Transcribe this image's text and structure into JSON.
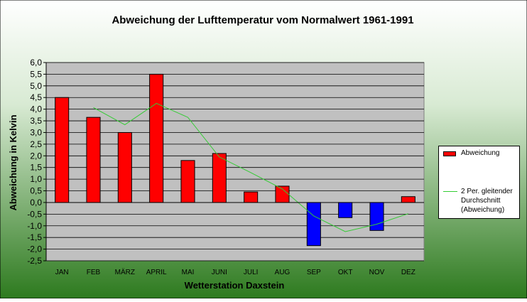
{
  "chart_data": {
    "type": "bar",
    "title": "Abweichung der Lufttemperatur vom Normalwert 1961-1991",
    "xlabel": "Wetterstation Daxstein",
    "ylabel": "Abweichung in Kelvin",
    "categories": [
      "JAN",
      "FEB",
      "MÄRZ",
      "APRIL",
      "MAI",
      "JUNI",
      "JULI",
      "AUG",
      "SEP",
      "OKT",
      "NOV",
      "DEZ"
    ],
    "ylim": [
      -2.5,
      6.0
    ],
    "yticks": [
      "6,0",
      "5,5",
      "5,0",
      "4,5",
      "4,0",
      "3,5",
      "3,0",
      "2,5",
      "2,0",
      "1,5",
      "1,0",
      "0,5",
      "0,0",
      "-0,5",
      "-1,0",
      "-1,5",
      "-2,0",
      "-2,5"
    ],
    "grid": true,
    "legend_position": "right",
    "series": [
      {
        "name": "Abweichung",
        "kind": "bar",
        "color_positive": "#ff0000",
        "color_negative": "#0000ff",
        "values": [
          4.5,
          3.65,
          3.0,
          5.5,
          1.8,
          2.1,
          0.45,
          0.7,
          -1.85,
          -0.65,
          -1.2,
          0.25
        ]
      },
      {
        "name": "2 Per. gleitender Durchschnitt (Abweichung)",
        "kind": "line",
        "color": "#33cc33",
        "values": [
          null,
          4.07,
          3.33,
          4.25,
          3.65,
          1.95,
          1.28,
          0.58,
          -0.58,
          -1.25,
          -0.93,
          -0.48
        ]
      }
    ]
  },
  "colors": {
    "plot_background": "#c0c0c0",
    "gradient_top": "#ffffff",
    "gradient_bottom": "#2d7a1e"
  }
}
